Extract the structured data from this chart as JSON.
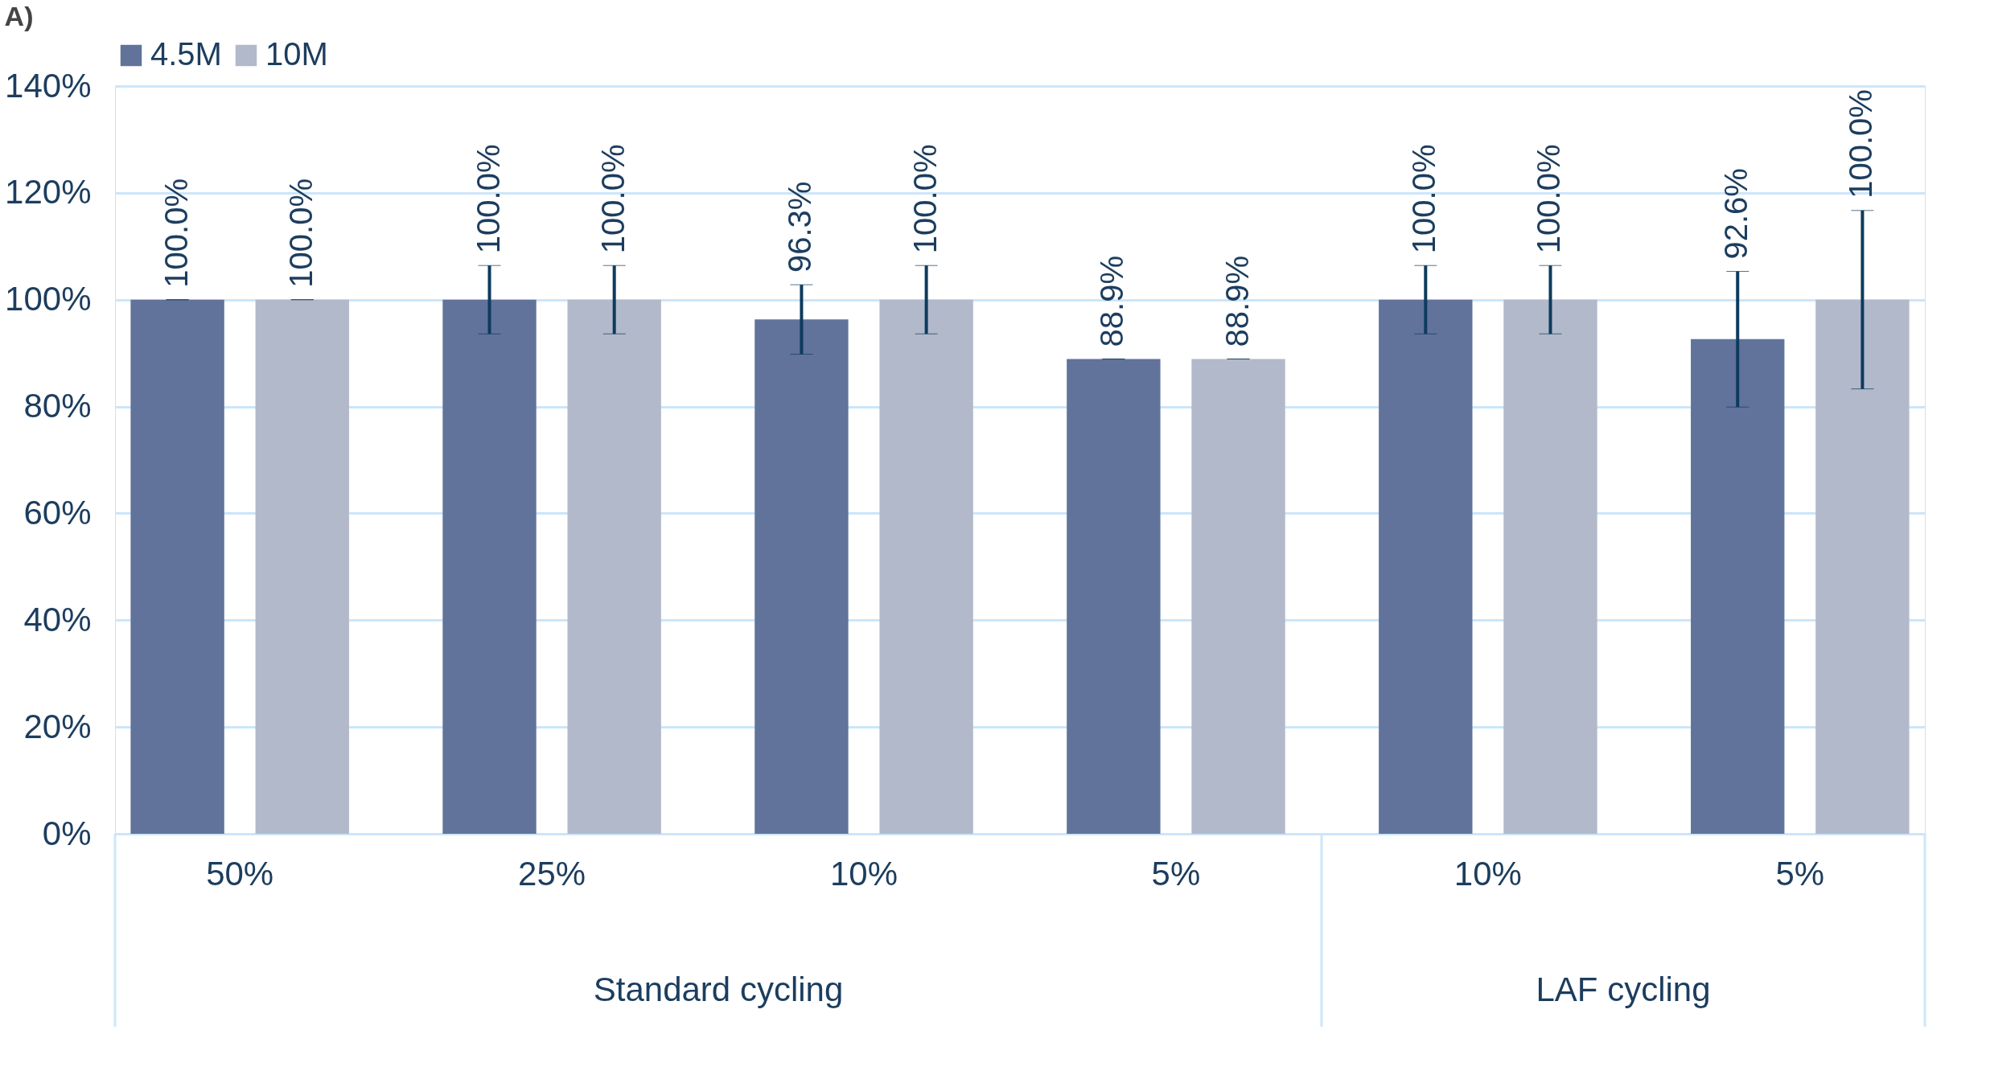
{
  "chart_data": {
    "type": "bar",
    "title": "A)",
    "categories": [
      "50%",
      "25%",
      "10%",
      "5%",
      "10%",
      "5%"
    ],
    "series": [
      {
        "name": "4.5M",
        "color": "#61739a",
        "values": [
          100.0,
          100.0,
          96.3,
          88.9,
          100.0,
          92.6
        ],
        "errors": [
          0,
          6.4,
          6.5,
          0,
          6.4,
          12.7
        ],
        "value_labels": [
          "100.0%",
          "100.0%",
          "96.3%",
          "88.9%",
          "100.0%",
          "92.6%"
        ]
      },
      {
        "name": "10M",
        "color": "#b2b9ca",
        "values": [
          100.0,
          100.0,
          100.0,
          88.9,
          100.0,
          100.0
        ],
        "errors": [
          0,
          6.4,
          6.4,
          0,
          6.4,
          16.7
        ],
        "value_labels": [
          "100.0%",
          "100.0%",
          "100.0%",
          "88.9%",
          "100.0%",
          "100.0%"
        ]
      }
    ],
    "annotations": [
      "Standard cycling",
      "LAF cycling"
    ],
    "ylim": [
      0,
      140
    ],
    "yticks": [
      {
        "value": 0,
        "label": "0%"
      },
      {
        "value": 20,
        "label": "20%"
      },
      {
        "value": 40,
        "label": "40%"
      },
      {
        "value": 60,
        "label": "60%"
      },
      {
        "value": 80,
        "label": "80%"
      },
      {
        "value": 100,
        "label": "100%"
      },
      {
        "value": 120,
        "label": "120%"
      },
      {
        "value": 140,
        "label": "140%"
      }
    ],
    "grid": "y",
    "legend": "top"
  }
}
